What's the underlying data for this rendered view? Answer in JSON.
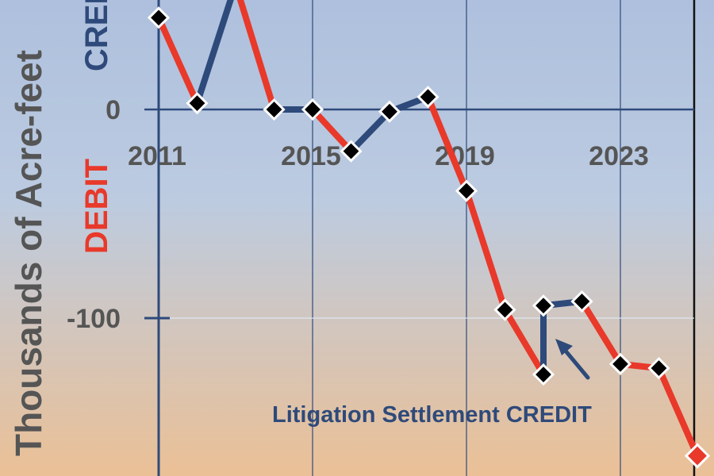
{
  "chart_data": {
    "type": "line",
    "ylabel": "Thousands of Acre-feet",
    "ylabel_credit": "CREDIT",
    "ylabel_debit": "DEBIT",
    "x_tick_labels": [
      "2011",
      "2015",
      "2019",
      "2023"
    ],
    "y_tick_labels": [
      "0",
      "-100"
    ],
    "xlim": [
      2011,
      2024.7
    ],
    "ylim": [
      -177,
      52
    ],
    "grid": true,
    "series": [
      {
        "x": [
          2011,
          2012,
          2013,
          2014,
          2015,
          2016,
          2017,
          2018,
          2019,
          2020,
          2021,
          2021,
          2022,
          2023,
          2024,
          2025
        ],
        "values": [
          44,
          3,
          60,
          0,
          0,
          -20,
          -1,
          6,
          -39,
          -96,
          -127,
          -94,
          -92,
          -122,
          -124,
          -166
        ]
      }
    ],
    "colors": {
      "debit_segment": "#e8392a",
      "credit_segment": "#2e4a7a",
      "marker": "#000000",
      "last_marker": "#e8392a",
      "grid": "#2e4a7a",
      "background_top": "#aec0de",
      "background_bottom": "#ebc096"
    },
    "annotations": [
      {
        "text": "Litigation Settlement CREDIT",
        "x": 2021,
        "y_from": -127,
        "y_to": -94
      }
    ]
  }
}
